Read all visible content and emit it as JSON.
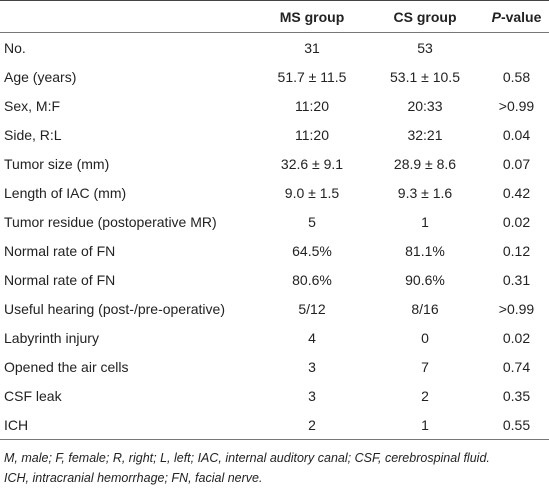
{
  "table": {
    "headers": [
      "MS group",
      "CS group",
      "P-value"
    ],
    "rows": [
      [
        "No.",
        "31",
        "53",
        ""
      ],
      [
        "Age (years)",
        "51.7 ± 11.5",
        "53.1 ± 10.5",
        "0.58"
      ],
      [
        "Sex, M:F",
        "11:20",
        "20:33",
        ">0.99"
      ],
      [
        "Side, R:L",
        "11:20",
        "32:21",
        "0.04"
      ],
      [
        "Tumor size (mm)",
        "32.6 ± 9.1",
        "28.9 ± 8.6",
        "0.07"
      ],
      [
        "Length of IAC (mm)",
        "9.0 ± 1.5",
        "9.3 ± 1.6",
        "0.42"
      ],
      [
        "Tumor residue (postoperative MR)",
        "5",
        "1",
        "0.02"
      ],
      [
        "Normal rate of FN",
        "64.5%",
        "81.1%",
        "0.12"
      ],
      [
        "Normal rate of FN",
        "80.6%",
        "90.6%",
        "0.31"
      ],
      [
        "Useful hearing (post-/pre-operative)",
        "5/12",
        "8/16",
        ">0.99"
      ],
      [
        "Labyrinth injury",
        "4",
        "0",
        "0.02"
      ],
      [
        "Opened the air cells",
        "3",
        "7",
        "0.74"
      ],
      [
        "CSF leak",
        "3",
        "2",
        "0.35"
      ],
      [
        "ICH",
        "2",
        "1",
        "0.55"
      ]
    ]
  },
  "footnote": [
    "M, male; F, female; R, right; L, left; IAC, internal auditory canal; CSF, cerebrospinal fluid.",
    "ICH, intracranial hemorrhage; FN, facial nerve."
  ]
}
